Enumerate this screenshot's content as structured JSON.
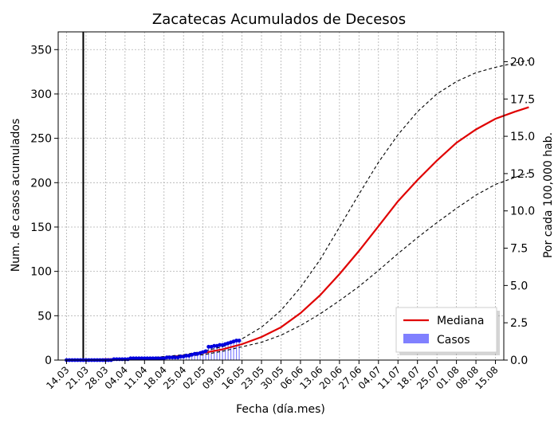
{
  "chart_data": {
    "type": "line",
    "title": "Zacatecas Acumulados de Decesos",
    "xlabel": "Fecha (día.mes)",
    "ylabel": "Num. de casos acumulados",
    "y2label": "Por cada 100,000 hab.",
    "ylim": [
      0,
      370
    ],
    "yticks": [
      0,
      50,
      100,
      150,
      200,
      250,
      300,
      350
    ],
    "y2lim": [
      0,
      22
    ],
    "y2ticks": [
      "0.0",
      "2.5",
      "5.0",
      "7.5",
      "10.0",
      "12.5",
      "15.0",
      "17.5",
      "20.0"
    ],
    "x_date_range": [
      "2020-03-11",
      "2020-08-18"
    ],
    "x_ticks": [
      {
        "date": "2020-03-14",
        "label": "14.03"
      },
      {
        "date": "2020-03-21",
        "label": "21.03"
      },
      {
        "date": "2020-03-28",
        "label": "28.03"
      },
      {
        "date": "2020-04-04",
        "label": "04.04"
      },
      {
        "date": "2020-04-11",
        "label": "11.04"
      },
      {
        "date": "2020-04-18",
        "label": "18.04"
      },
      {
        "date": "2020-04-25",
        "label": "25.04"
      },
      {
        "date": "2020-05-02",
        "label": "02.05"
      },
      {
        "date": "2020-05-09",
        "label": "09.05"
      },
      {
        "date": "2020-05-16",
        "label": "16.05"
      },
      {
        "date": "2020-05-23",
        "label": "23.05"
      },
      {
        "date": "2020-05-30",
        "label": "30.05"
      },
      {
        "date": "2020-06-06",
        "label": "06.06"
      },
      {
        "date": "2020-06-13",
        "label": "13.06"
      },
      {
        "date": "2020-06-20",
        "label": "20.06"
      },
      {
        "date": "2020-06-27",
        "label": "27.06"
      },
      {
        "date": "2020-07-04",
        "label": "04.07"
      },
      {
        "date": "2020-07-11",
        "label": "11.07"
      },
      {
        "date": "2020-07-18",
        "label": "18.07"
      },
      {
        "date": "2020-07-25",
        "label": "25.07"
      },
      {
        "date": "2020-08-01",
        "label": "01.08"
      },
      {
        "date": "2020-08-08",
        "label": "08.08"
      },
      {
        "date": "2020-08-15",
        "label": "15.08"
      }
    ],
    "vertical_line_date": "2020-03-20",
    "grid": true,
    "legend_position": "bottom-right",
    "series": [
      {
        "name": "Mediana",
        "kind": "line",
        "color": "#e00000",
        "points": [
          [
            "2020-03-14",
            0
          ],
          [
            "2020-03-21",
            0
          ],
          [
            "2020-03-28",
            1
          ],
          [
            "2020-04-04",
            1
          ],
          [
            "2020-04-11",
            2
          ],
          [
            "2020-04-18",
            3
          ],
          [
            "2020-04-25",
            5
          ],
          [
            "2020-05-02",
            8
          ],
          [
            "2020-05-09",
            12
          ],
          [
            "2020-05-16",
            18
          ],
          [
            "2020-05-23",
            26
          ],
          [
            "2020-05-30",
            37
          ],
          [
            "2020-06-06",
            53
          ],
          [
            "2020-06-13",
            73
          ],
          [
            "2020-06-20",
            97
          ],
          [
            "2020-06-27",
            123
          ],
          [
            "2020-07-04",
            151
          ],
          [
            "2020-07-11",
            179
          ],
          [
            "2020-07-18",
            203
          ],
          [
            "2020-07-25",
            225
          ],
          [
            "2020-08-01",
            245
          ],
          [
            "2020-08-08",
            260
          ],
          [
            "2020-08-15",
            272
          ],
          [
            "2020-08-22",
            280
          ],
          [
            "2020-08-27",
            285
          ]
        ]
      },
      {
        "kind": "dashed",
        "color": "#000000",
        "points": [
          [
            "2020-03-14",
            0
          ],
          [
            "2020-03-21",
            0
          ],
          [
            "2020-03-28",
            1
          ],
          [
            "2020-04-04",
            1
          ],
          [
            "2020-04-11",
            2
          ],
          [
            "2020-04-18",
            4
          ],
          [
            "2020-04-25",
            6
          ],
          [
            "2020-05-02",
            10
          ],
          [
            "2020-05-09",
            15
          ],
          [
            "2020-05-16",
            24
          ],
          [
            "2020-05-23",
            37
          ],
          [
            "2020-05-30",
            56
          ],
          [
            "2020-06-06",
            82
          ],
          [
            "2020-06-13",
            113
          ],
          [
            "2020-06-20",
            150
          ],
          [
            "2020-06-27",
            187
          ],
          [
            "2020-07-04",
            223
          ],
          [
            "2020-07-11",
            254
          ],
          [
            "2020-07-18",
            280
          ],
          [
            "2020-07-25",
            300
          ],
          [
            "2020-08-01",
            314
          ],
          [
            "2020-08-08",
            324
          ],
          [
            "2020-08-15",
            330
          ],
          [
            "2020-08-22",
            335
          ],
          [
            "2020-08-27",
            338
          ]
        ]
      },
      {
        "kind": "dashed",
        "color": "#000000",
        "points": [
          [
            "2020-03-14",
            0
          ],
          [
            "2020-03-21",
            0
          ],
          [
            "2020-03-28",
            1
          ],
          [
            "2020-04-04",
            1
          ],
          [
            "2020-04-11",
            2
          ],
          [
            "2020-04-18",
            3
          ],
          [
            "2020-04-25",
            4
          ],
          [
            "2020-05-02",
            6
          ],
          [
            "2020-05-09",
            10
          ],
          [
            "2020-05-16",
            15
          ],
          [
            "2020-05-23",
            20
          ],
          [
            "2020-05-30",
            28
          ],
          [
            "2020-06-06",
            39
          ],
          [
            "2020-06-13",
            52
          ],
          [
            "2020-06-20",
            67
          ],
          [
            "2020-06-27",
            83
          ],
          [
            "2020-07-04",
            101
          ],
          [
            "2020-07-11",
            120
          ],
          [
            "2020-07-18",
            138
          ],
          [
            "2020-07-25",
            155
          ],
          [
            "2020-08-01",
            171
          ],
          [
            "2020-08-08",
            186
          ],
          [
            "2020-08-15",
            198
          ],
          [
            "2020-08-22",
            206
          ],
          [
            "2020-08-27",
            211
          ]
        ]
      }
    ],
    "casos": {
      "name": "Casos",
      "color": "#0000dd",
      "bar_color": "#8080ff",
      "points": [
        [
          "2020-03-14",
          0
        ],
        [
          "2020-03-15",
          0
        ],
        [
          "2020-03-16",
          0
        ],
        [
          "2020-03-17",
          0
        ],
        [
          "2020-03-18",
          0
        ],
        [
          "2020-03-19",
          0
        ],
        [
          "2020-03-20",
          0
        ],
        [
          "2020-03-21",
          0
        ],
        [
          "2020-03-22",
          0
        ],
        [
          "2020-03-23",
          0
        ],
        [
          "2020-03-24",
          0
        ],
        [
          "2020-03-25",
          0
        ],
        [
          "2020-03-26",
          0
        ],
        [
          "2020-03-27",
          0
        ],
        [
          "2020-03-28",
          0
        ],
        [
          "2020-03-29",
          0
        ],
        [
          "2020-03-30",
          0
        ],
        [
          "2020-03-31",
          1
        ],
        [
          "2020-04-01",
          1
        ],
        [
          "2020-04-02",
          1
        ],
        [
          "2020-04-03",
          1
        ],
        [
          "2020-04-04",
          1
        ],
        [
          "2020-04-05",
          1
        ],
        [
          "2020-04-06",
          2
        ],
        [
          "2020-04-07",
          2
        ],
        [
          "2020-04-08",
          2
        ],
        [
          "2020-04-09",
          2
        ],
        [
          "2020-04-10",
          2
        ],
        [
          "2020-04-11",
          2
        ],
        [
          "2020-04-12",
          2
        ],
        [
          "2020-04-13",
          2
        ],
        [
          "2020-04-14",
          2
        ],
        [
          "2020-04-15",
          2
        ],
        [
          "2020-04-16",
          2
        ],
        [
          "2020-04-17",
          2
        ],
        [
          "2020-04-18",
          2
        ],
        [
          "2020-04-19",
          3
        ],
        [
          "2020-04-20",
          3
        ],
        [
          "2020-04-21",
          3
        ],
        [
          "2020-04-22",
          3
        ],
        [
          "2020-04-23",
          3
        ],
        [
          "2020-04-24",
          4
        ],
        [
          "2020-04-25",
          4
        ],
        [
          "2020-04-26",
          5
        ],
        [
          "2020-04-27",
          5
        ],
        [
          "2020-04-28",
          6
        ],
        [
          "2020-04-29",
          7
        ],
        [
          "2020-04-30",
          7
        ],
        [
          "2020-05-01",
          8
        ],
        [
          "2020-05-02",
          9
        ],
        [
          "2020-05-03",
          10
        ],
        [
          "2020-05-04",
          15
        ],
        [
          "2020-05-05",
          15
        ],
        [
          "2020-05-06",
          16
        ],
        [
          "2020-05-07",
          16
        ],
        [
          "2020-05-08",
          17
        ],
        [
          "2020-05-09",
          17
        ],
        [
          "2020-05-10",
          18
        ],
        [
          "2020-05-11",
          19
        ],
        [
          "2020-05-12",
          20
        ],
        [
          "2020-05-13",
          21
        ],
        [
          "2020-05-14",
          22
        ],
        [
          "2020-05-15",
          22
        ]
      ]
    }
  }
}
